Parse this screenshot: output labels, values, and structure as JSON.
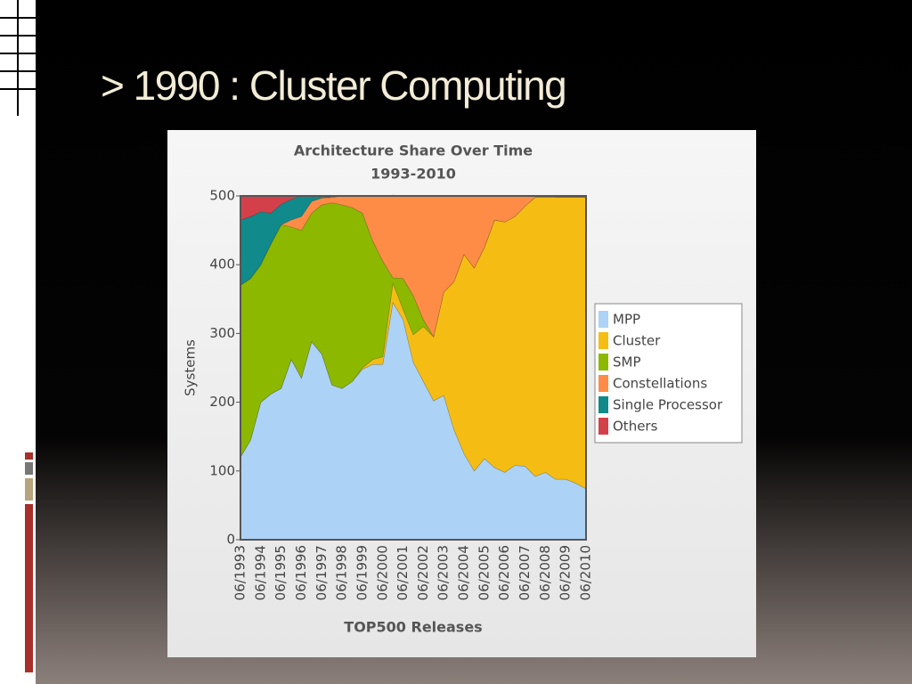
{
  "slide_title": "> 1990 : Cluster Computing",
  "chart_data": {
    "type": "stacked-area",
    "title": "Architecture Share Over Time",
    "subtitle": "1993-2010",
    "y_label": "Systems",
    "x_label": "TOP500 Releases",
    "categories": [
      "06/1993",
      null,
      "06/1994",
      null,
      "06/1995",
      null,
      "06/1996",
      null,
      "06/1997",
      null,
      "06/1998",
      null,
      "06/1999",
      null,
      "06/2000",
      null,
      "06/2001",
      null,
      "06/2002",
      null,
      "06/2003",
      null,
      "06/2004",
      null,
      "06/2005",
      null,
      "06/2006",
      null,
      "06/2007",
      null,
      "06/2008",
      null,
      "06/2009",
      null,
      "06/2010"
    ],
    "ylim": [
      0,
      500
    ],
    "yticks": [
      0,
      100,
      200,
      300,
      400,
      500
    ],
    "legend": "right",
    "series": [
      {
        "name": "MPP",
        "color": "#acd3f5",
        "values": [
          120,
          145,
          200,
          212,
          220,
          262,
          235,
          288,
          270,
          225,
          220,
          230,
          248,
          255,
          255,
          345,
          320,
          258,
          230,
          202,
          210,
          160,
          125,
          100,
          118,
          105,
          98,
          108,
          107,
          92,
          98,
          88,
          88,
          82,
          74
        ]
      },
      {
        "name": "Cluster",
        "color": "#f5bd14",
        "values": [
          0,
          0,
          0,
          0,
          0,
          0,
          0,
          0,
          0,
          0,
          0,
          0,
          2,
          7,
          11,
          28,
          15,
          40,
          80,
          93,
          150,
          215,
          290,
          295,
          307,
          360,
          364,
          362,
          378,
          406,
          400,
          410,
          410,
          416,
          424
        ]
      },
      {
        "name": "SMP",
        "color": "#8cb800",
        "values": [
          250,
          235,
          200,
          218,
          238,
          193,
          215,
          187,
          217,
          265,
          267,
          253,
          225,
          173,
          139,
          8,
          45,
          57,
          10,
          0,
          0,
          0,
          0,
          0,
          0,
          0,
          0,
          0,
          0,
          0,
          0,
          0,
          0,
          0,
          0
        ]
      },
      {
        "name": "Constellations",
        "color": "#ff8c46",
        "values": [
          0,
          0,
          0,
          0,
          0,
          10,
          20,
          17,
          10,
          8,
          13,
          17,
          25,
          65,
          95,
          120,
          120,
          145,
          180,
          205,
          140,
          125,
          85,
          105,
          75,
          35,
          38,
          30,
          15,
          2,
          2,
          1,
          1,
          1,
          1
        ]
      },
      {
        "name": "Single Processor",
        "color": "#108a8a",
        "values": [
          95,
          90,
          77,
          45,
          30,
          30,
          30,
          8,
          3,
          0,
          0,
          0,
          0,
          0,
          0,
          0,
          0,
          0,
          0,
          0,
          0,
          0,
          0,
          0,
          0,
          0,
          0,
          0,
          0,
          0,
          0,
          0,
          0,
          0,
          0
        ]
      },
      {
        "name": "Others",
        "color": "#d4404a",
        "values": [
          35,
          30,
          23,
          25,
          12,
          5,
          0,
          0,
          0,
          0,
          0,
          0,
          0,
          0,
          0,
          0,
          0,
          0,
          0,
          0,
          0,
          0,
          0,
          0,
          0,
          0,
          0,
          0,
          0,
          0,
          0,
          0,
          0,
          0,
          0
        ]
      }
    ]
  }
}
